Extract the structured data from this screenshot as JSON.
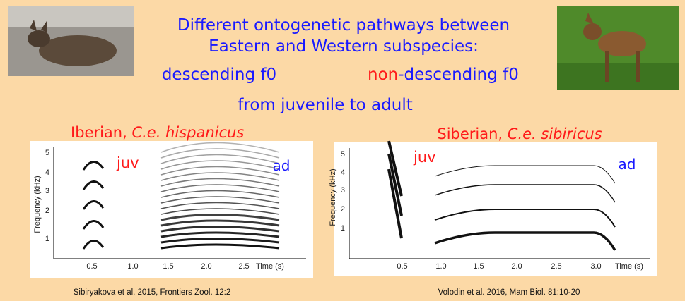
{
  "slide": {
    "title_lines": [
      "Different ontogenetic pathways between",
      "Eastern and Western subspecies:"
    ],
    "descending": "descending f0",
    "non_descending": {
      "highlight": "non",
      "rest": "-descending f0"
    },
    "subtitle": "from juvenile to adult",
    "panels": [
      {
        "label": "Iberian, ",
        "label_italic": "C.e. hispanicus",
        "juv": "juv",
        "ad": "ad",
        "y_axis_label": "Frequency (kHz)",
        "yticks": [
          "1",
          "2",
          "3",
          "4",
          "5"
        ],
        "xticks": [
          "0.5",
          "1.0",
          "1.5",
          "2.0",
          "2.5"
        ],
        "x_axis_label": "Time (s)",
        "citation": "Sibiryakova et al. 2015, Frontiers Zool. 12:2"
      },
      {
        "label": "Siberian, ",
        "label_italic": "C.e. sibiricus",
        "juv": "juv",
        "ad": "ad",
        "y_axis_label": "Frequency (kHz)",
        "yticks": [
          "1",
          "2",
          "3",
          "4",
          "5"
        ],
        "xticks": [
          "0.5",
          "1.0",
          "1.5",
          "2.0",
          "2.5",
          "3.0"
        ],
        "x_axis_label": "Time (s)",
        "citation": "Volodin et al. 2016, Mam Biol. 81:10-20"
      }
    ]
  }
}
